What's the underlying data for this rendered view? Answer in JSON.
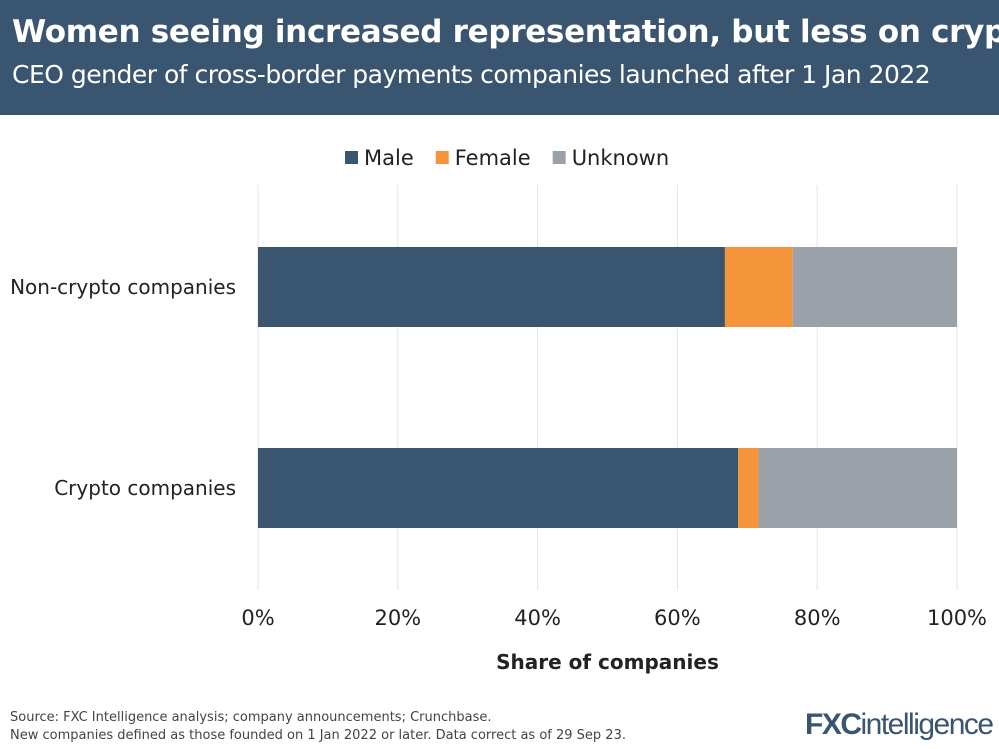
{
  "header": {
    "title": "Women seeing increased representation, but less on crypto",
    "subtitle": "CEO gender of cross-border payments companies launched after 1 Jan 2022"
  },
  "chart_data": {
    "type": "bar",
    "orientation": "horizontal",
    "stacked": true,
    "categories": [
      "Non-crypto companies",
      "Crypto companies"
    ],
    "series": [
      {
        "name": "Male",
        "color": "#3a5570",
        "values": [
          66.8,
          68.7
        ]
      },
      {
        "name": "Female",
        "color": "#f5953b",
        "values": [
          9.7,
          2.9
        ]
      },
      {
        "name": "Unknown",
        "color": "#9aa1a9",
        "values": [
          23.5,
          28.4
        ]
      }
    ],
    "xlabel": "Share of companies",
    "xlim": [
      0,
      100
    ],
    "xticks": [
      "0%",
      "20%",
      "40%",
      "60%",
      "80%",
      "100%"
    ],
    "grid": true,
    "legend": "top"
  },
  "footer": {
    "source": "Source: FXC Intelligence analysis; company announcements; Crunchbase.",
    "note": "New companies defined as those founded on 1 Jan 2022 or later. Data correct as of 29 Sep 23.",
    "logo": "FXCintelligence"
  }
}
